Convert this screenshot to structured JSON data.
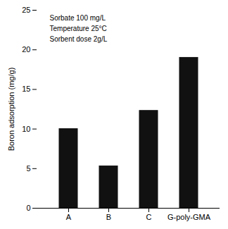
{
  "chart_data": {
    "type": "bar",
    "categories": [
      "A",
      "B",
      "C",
      "G-poly-GMA"
    ],
    "values": [
      10.0,
      5.3,
      12.3,
      19.0
    ],
    "color": "#111111",
    "ylabel": "Boron adsorption (mg/g)",
    "ylim": [
      0,
      25
    ],
    "yticks": [
      0,
      5,
      10,
      15,
      20,
      25
    ],
    "annotations": [
      "Sorbate 100 mg/L",
      "Temperature 25°C",
      "Sorbent dose 2g/L"
    ],
    "grid": false
  }
}
